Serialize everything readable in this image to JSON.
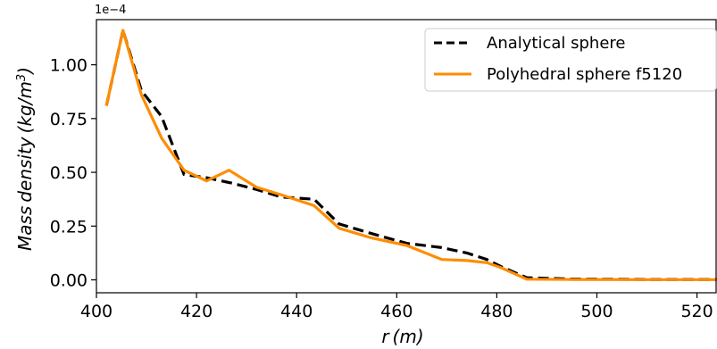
{
  "chart_data": {
    "type": "line",
    "title": "",
    "xlabel": "r (m)",
    "ylabel": "Mass density (kg/m",
    "ylabel_sup": "3",
    "ylabel_close": ")",
    "y_offset_text": "1e−4",
    "xlim": [
      400,
      524
    ],
    "ylim": [
      -0.06,
      1.21
    ],
    "x_ticks": [
      400,
      420,
      440,
      460,
      480,
      500,
      520
    ],
    "x_tick_labels": [
      "400",
      "420",
      "440",
      "460",
      "480",
      "500",
      "520"
    ],
    "y_ticks": [
      0.0,
      0.25,
      0.5,
      0.75,
      1.0
    ],
    "y_tick_labels": [
      "0.00",
      "0.25",
      "0.50",
      "0.75",
      "1.00"
    ],
    "grid": false,
    "legend_position": "top-right",
    "series": [
      {
        "name": "Analytical sphere",
        "color": "#000000",
        "dashed": true,
        "x": [
          402,
          405.3,
          409,
          413,
          417.5,
          422,
          427,
          432,
          437,
          443.5,
          448.5,
          455,
          462,
          469,
          474,
          478,
          481,
          486,
          495,
          510,
          524
        ],
        "y": [
          0.81,
          1.16,
          0.88,
          0.76,
          0.49,
          0.475,
          0.45,
          0.42,
          0.385,
          0.375,
          0.26,
          0.215,
          0.17,
          0.15,
          0.125,
          0.095,
          0.06,
          0.01,
          0.004,
          0.002,
          0.002
        ]
      },
      {
        "name": "Polyhedral sphere f5120",
        "color": "#ff8c00",
        "dashed": false,
        "x": [
          402,
          405.3,
          409,
          413,
          417.5,
          422,
          426.5,
          432,
          437,
          443.5,
          448.5,
          455,
          462,
          469,
          474,
          478,
          481,
          486,
          495,
          510,
          524
        ],
        "y": [
          0.81,
          1.16,
          0.86,
          0.66,
          0.51,
          0.46,
          0.51,
          0.43,
          0.395,
          0.345,
          0.24,
          0.195,
          0.16,
          0.095,
          0.09,
          0.08,
          0.055,
          0.003,
          0.002,
          0.001,
          0.001
        ]
      }
    ]
  }
}
